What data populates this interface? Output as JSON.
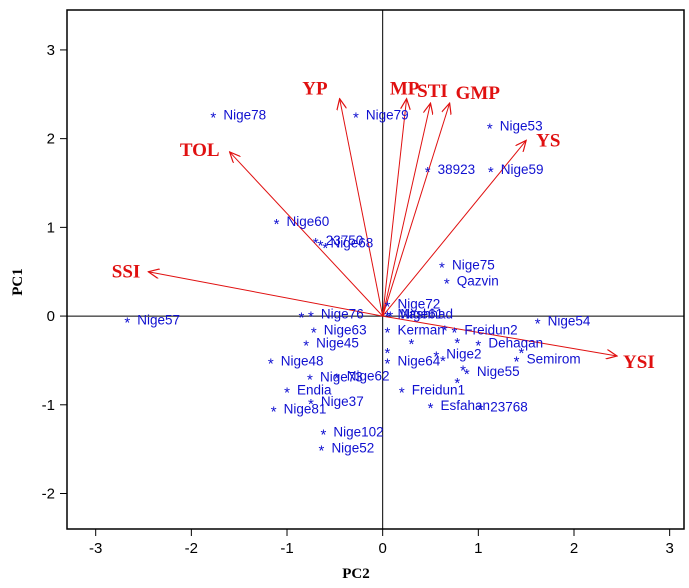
{
  "chart_data": {
    "type": "scatter",
    "xlabel": "PC2",
    "ylabel": "PC1",
    "xlim": [
      -3.3,
      3.15
    ],
    "ylim": [
      -2.4,
      3.45
    ],
    "x_ticks": [
      "-3",
      "-2",
      "-1",
      "0",
      "1",
      "2",
      "3"
    ],
    "x_tick_values": [
      -3,
      -2,
      -1,
      0,
      1,
      2,
      3
    ],
    "y_ticks": [
      "3",
      "2",
      "1",
      "0",
      "-1",
      "-2"
    ],
    "y_tick_values": [
      3,
      2,
      1,
      0,
      -1,
      -2
    ],
    "marker": "*",
    "points": [
      {
        "label": "Nige78",
        "x": -1.77,
        "y": 2.27
      },
      {
        "label": "Nige79",
        "x": -0.28,
        "y": 2.27
      },
      {
        "label": "Nige53",
        "x": 1.12,
        "y": 2.15
      },
      {
        "label": "38923",
        "x": 0.47,
        "y": 1.66
      },
      {
        "label": "Nige59",
        "x": 1.13,
        "y": 1.66
      },
      {
        "label": "Nige60",
        "x": -1.11,
        "y": 1.07
      },
      {
        "label": "23750",
        "x": -0.7,
        "y": 0.86
      },
      {
        "label": "Nige68",
        "x": -0.65,
        "y": 0.83
      },
      {
        "label": "Nige75",
        "x": 0.62,
        "y": 0.58
      },
      {
        "label": "Qazvin",
        "x": 0.67,
        "y": 0.4
      },
      {
        "label": "Nige72",
        "x": 0.05,
        "y": 0.14
      },
      {
        "label": "Nige57",
        "x": -2.67,
        "y": -0.04
      },
      {
        "label": "Nige76",
        "x": -0.75,
        "y": 0.03
      },
      {
        "label": "Mashhad",
        "x": 0.05,
        "y": 0.03
      },
      {
        "label": "Nige61",
        "x": 0.08,
        "y": 0.03
      },
      {
        "label": "Nige54",
        "x": 1.62,
        "y": -0.05
      },
      {
        "label": "Freidun2",
        "x": 0.75,
        "y": -0.15
      },
      {
        "label": "Nige63",
        "x": -0.72,
        "y": -0.15
      },
      {
        "label": "Kerman",
        "x": 0.05,
        "y": -0.15
      },
      {
        "label": "Dehaqan",
        "x": 1.0,
        "y": -0.3
      },
      {
        "label": "Nige45",
        "x": -0.8,
        "y": -0.3
      },
      {
        "label": "Semirom",
        "x": 1.4,
        "y": -0.48
      },
      {
        "label": "Nige48",
        "x": -1.17,
        "y": -0.5
      },
      {
        "label": "Nige64",
        "x": 0.05,
        "y": -0.5
      },
      {
        "label": "Nige2",
        "x": 0.56,
        "y": -0.42
      },
      {
        "label": "Nige55",
        "x": 0.88,
        "y": -0.62
      },
      {
        "label": "Nige73",
        "x": -0.76,
        "y": -0.68
      },
      {
        "label": "Nige62",
        "x": -0.48,
        "y": -0.67
      },
      {
        "label": "Endia",
        "x": -1.0,
        "y": -0.83
      },
      {
        "label": "Freidun1",
        "x": 0.2,
        "y": -0.83
      },
      {
        "label": "Nige81",
        "x": -1.14,
        "y": -1.04
      },
      {
        "label": "Nige37",
        "x": -0.75,
        "y": -0.96
      },
      {
        "label": "Esfahan",
        "x": 0.5,
        "y": -1.0
      },
      {
        "label": "23768",
        "x": 1.02,
        "y": -1.02
      },
      {
        "label": "Nige102",
        "x": -0.62,
        "y": -1.3
      },
      {
        "label": "Nige52",
        "x": -0.64,
        "y": -1.48
      }
    ],
    "extra_markers": [
      {
        "x": -0.6,
        "y": 0.8
      },
      {
        "x": 0.3,
        "y": -0.28
      },
      {
        "x": 0.78,
        "y": -0.27
      },
      {
        "x": 1.45,
        "y": -0.38
      },
      {
        "x": -0.85,
        "y": 0.02
      },
      {
        "x": 0.63,
        "y": -0.47
      },
      {
        "x": 0.84,
        "y": -0.58
      },
      {
        "x": 0.78,
        "y": -0.72
      },
      {
        "x": 0.05,
        "y": -0.38
      },
      {
        "x": 0.65,
        "y": -0.13
      }
    ],
    "vectors": [
      {
        "label": "YP",
        "x": -0.45,
        "y": 2.45
      },
      {
        "label": "MP",
        "x": 0.25,
        "y": 2.45
      },
      {
        "label": "STI",
        "x": 0.5,
        "y": 2.4
      },
      {
        "label": "GMP",
        "x": 0.7,
        "y": 2.4
      },
      {
        "label": "TOL",
        "x": -1.6,
        "y": 1.85
      },
      {
        "label": "YS",
        "x": 1.5,
        "y": 1.98
      },
      {
        "label": "SSI",
        "x": -2.45,
        "y": 0.5
      },
      {
        "label": "YSI",
        "x": 2.45,
        "y": -0.45
      }
    ]
  },
  "colors": {
    "genotype": "#1010d0",
    "vector": "#e01010",
    "axis": "#000000"
  }
}
